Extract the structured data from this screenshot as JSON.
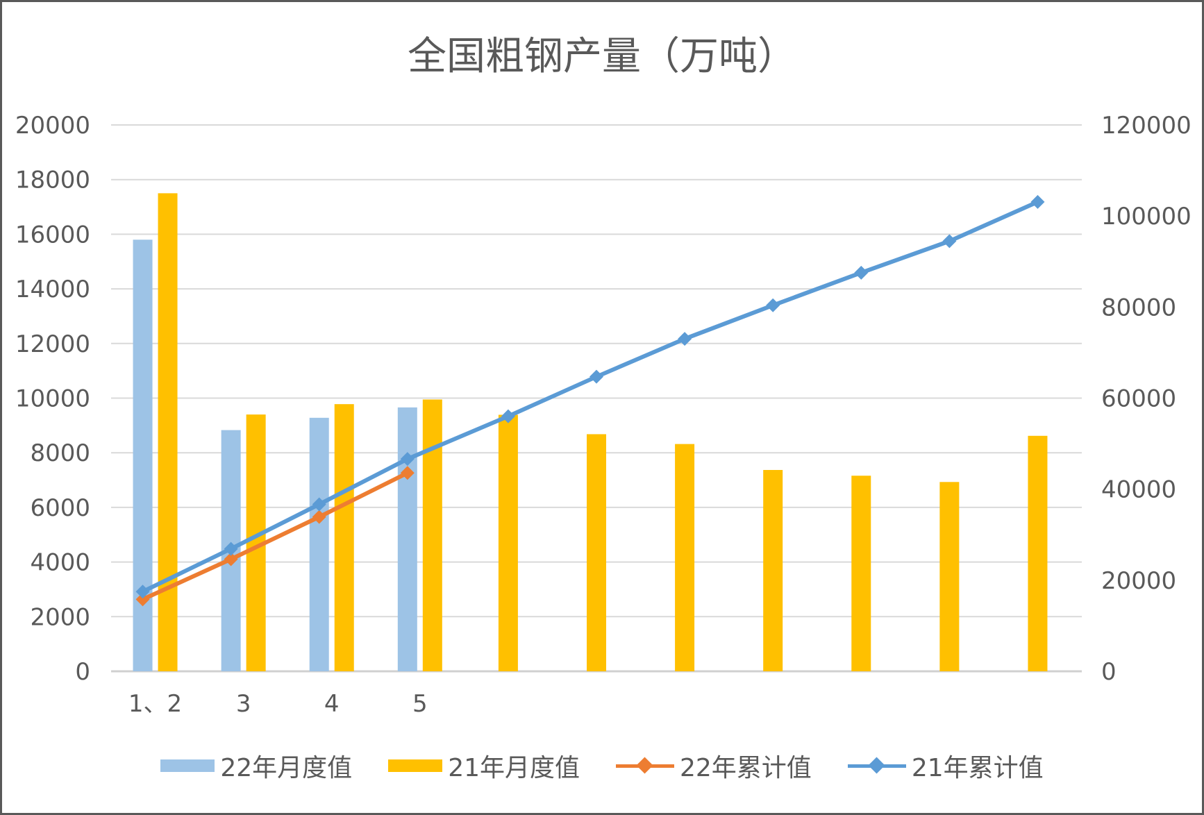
{
  "chart_data": {
    "type": "bar",
    "title": "全国粗钢产量（万吨）",
    "categories": [
      "1、2",
      "3",
      "4",
      "5",
      "",
      "",
      "",
      "",
      "",
      "",
      ""
    ],
    "y_left": {
      "min": 0,
      "max": 20000,
      "step": 2000,
      "ticks": [
        "0",
        "2000",
        "4000",
        "6000",
        "8000",
        "10000",
        "12000",
        "14000",
        "16000",
        "18000",
        "20000"
      ]
    },
    "y_right": {
      "min": 0,
      "max": 120000,
      "step": 20000,
      "ticks": [
        "0",
        "20000",
        "40000",
        "60000",
        "80000",
        "100000",
        "120000"
      ]
    },
    "grid": true,
    "legend_position": "bottom",
    "series": [
      {
        "name": "22年月度值",
        "kind": "bar",
        "axis": "left",
        "color": "#9DC3E6",
        "values": [
          15800,
          8830,
          9280,
          9660,
          null,
          null,
          null,
          null,
          null,
          null,
          null
        ]
      },
      {
        "name": "21年月度值",
        "kind": "bar",
        "axis": "left",
        "color": "#FFC000",
        "values": [
          17500,
          9400,
          9780,
          9950,
          9390,
          8680,
          8320,
          7370,
          7160,
          6930,
          8620
        ]
      },
      {
        "name": "22年累计值",
        "kind": "line",
        "axis": "right",
        "color": "#ED7D31",
        "values": [
          15800,
          24630,
          33910,
          43570,
          null,
          null,
          null,
          null,
          null,
          null,
          null
        ]
      },
      {
        "name": "21年累计值",
        "kind": "line",
        "axis": "right",
        "color": "#5B9BD5",
        "values": [
          17500,
          26900,
          36680,
          46630,
          56020,
          64700,
          73020,
          80390,
          87550,
          94480,
          103100
        ]
      }
    ]
  }
}
